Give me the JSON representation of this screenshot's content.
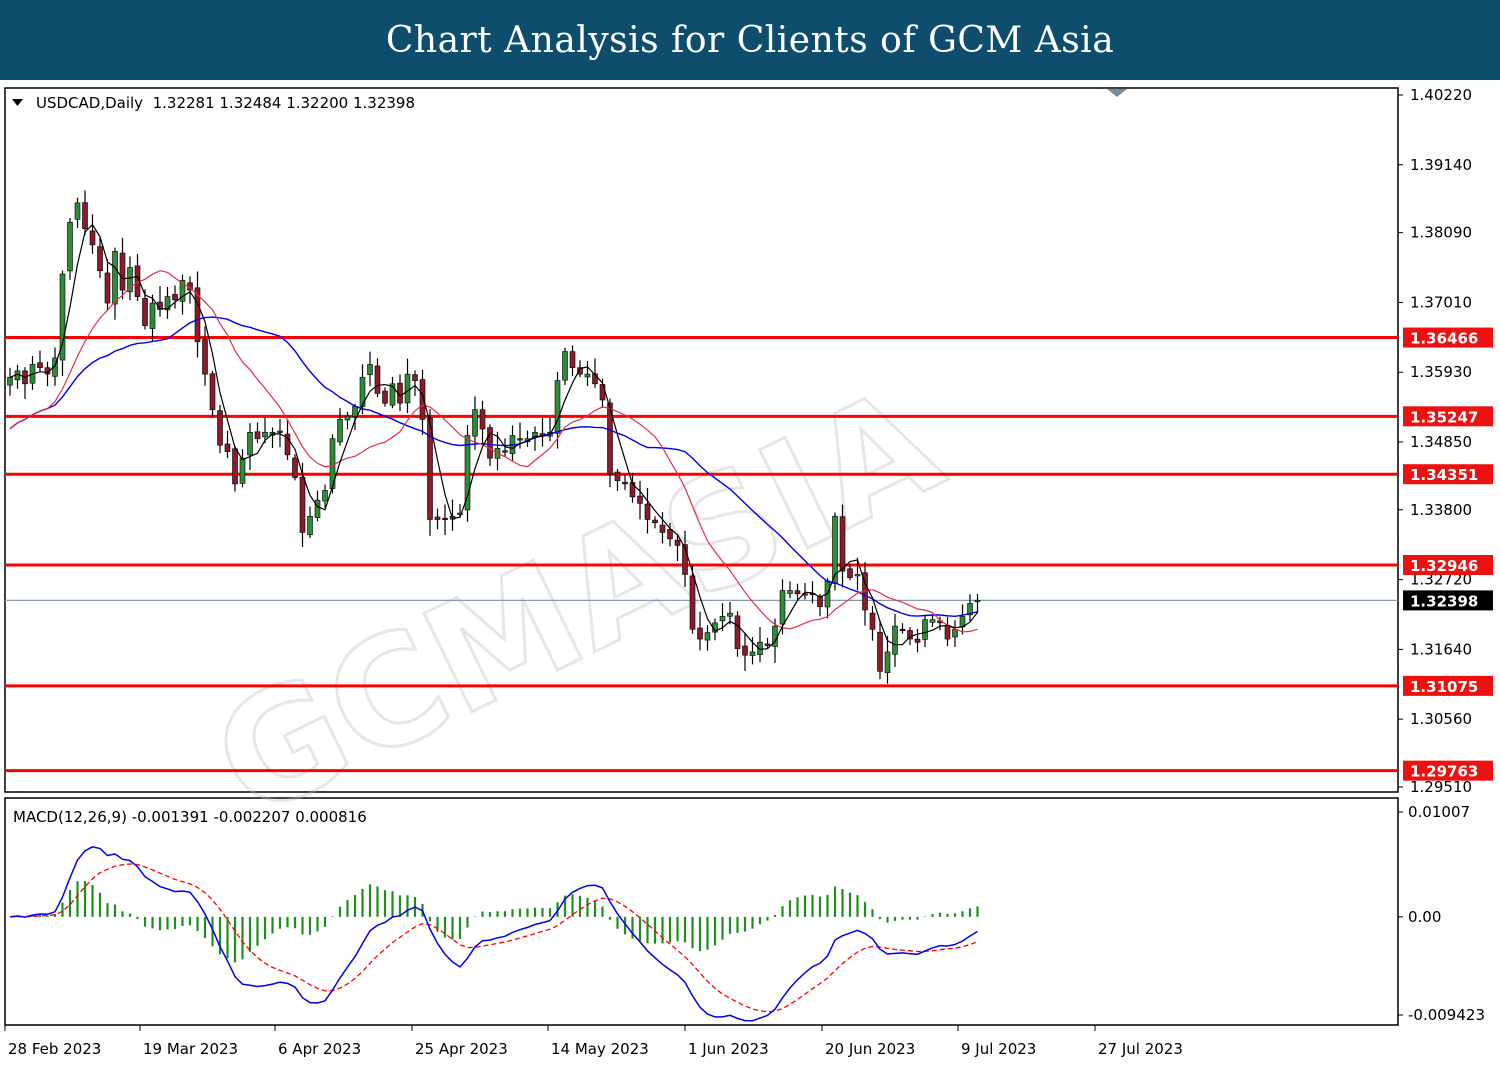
{
  "banner": {
    "title": "Chart Analysis for Clients of GCM Asia"
  },
  "chart_data": {
    "type": "candlestick",
    "symbol_line": "USDCAD,Daily  1.32281 1.32484 1.32200 1.32398",
    "ohlc_last": {
      "open": 1.32281,
      "high": 1.32484,
      "low": 1.322,
      "close": 1.32398
    },
    "price_axis": {
      "ylim": [
        1.2951,
        1.4022
      ],
      "ticks": [
        "1.40220",
        "1.39140",
        "1.38090",
        "1.37010",
        "1.35930",
        "1.34850",
        "1.33800",
        "1.32720",
        "1.31640",
        "1.30560",
        "1.29510"
      ]
    },
    "levels": [
      {
        "label": "1.36466",
        "value": 1.36466
      },
      {
        "label": "1.35247",
        "value": 1.35247
      },
      {
        "label": "1.34351",
        "value": 1.34351
      },
      {
        "label": "1.32946",
        "value": 1.32946
      },
      {
        "label": "1.31075",
        "value": 1.31075
      },
      {
        "label": "1.29763",
        "value": 1.29763
      }
    ],
    "current_price": {
      "label": "1.32398",
      "value": 1.32398
    },
    "x_labels": [
      "28 Feb 2023",
      "19 Mar 2023",
      "6 Apr 2023",
      "25 Apr 2023",
      "14 May 2023",
      "1 Jun 2023",
      "20 Jun 2023",
      "9 Jul 2023",
      "27 Jul 2023"
    ],
    "closes": [
      1.3585,
      1.3595,
      1.3575,
      1.3605,
      1.36,
      1.359,
      1.3615,
      1.3745,
      1.3825,
      1.3855,
      1.3815,
      1.379,
      1.375,
      1.37,
      1.378,
      1.372,
      1.3755,
      1.371,
      1.3665,
      1.37,
      1.369,
      1.371,
      1.3705,
      1.3735,
      1.372,
      1.364,
      1.359,
      1.3535,
      1.348,
      1.347,
      1.342,
      1.346,
      1.35,
      1.349,
      1.35,
      1.35,
      1.35,
      1.3465,
      1.343,
      1.3345,
      1.337,
      1.3395,
      1.341,
      1.349,
      1.352,
      1.3525,
      1.354,
      1.3585,
      1.3605,
      1.356,
      1.3545,
      1.3575,
      1.3545,
      1.359,
      1.358,
      1.352,
      1.3365,
      1.3365,
      1.3365,
      1.337,
      1.3375,
      1.3495,
      1.3535,
      1.3505,
      1.346,
      1.3475,
      1.347,
      1.3495,
      1.349,
      1.349,
      1.35,
      1.3495,
      1.35,
      1.358,
      1.3625,
      1.36,
      1.359,
      1.359,
      1.3575,
      1.355,
      1.3435,
      1.3425,
      1.342,
      1.34,
      1.339,
      1.3365,
      1.336,
      1.3345,
      1.3335,
      1.3325,
      1.328,
      1.3195,
      1.318,
      1.319,
      1.3205,
      1.3215,
      1.322,
      1.3165,
      1.3155,
      1.316,
      1.3175,
      1.317,
      1.32,
      1.3255,
      1.3255,
      1.325,
      1.325,
      1.325,
      1.323,
      1.327,
      1.337,
      1.3285,
      1.3275,
      1.328,
      1.3225,
      1.3195,
      1.313,
      1.316,
      1.32,
      1.3195,
      1.318,
      1.3175,
      1.321,
      1.321,
      1.3205,
      1.318,
      1.3195,
      1.3215,
      1.3235,
      1.324
    ],
    "macd": {
      "label": "MACD(12,26,9) -0.001391 -0.002207 0.000816",
      "main": -0.001391,
      "signal": -0.002207,
      "hist": 0.000816,
      "ticks": [
        "0.01007",
        "0.00",
        "-0.009423"
      ],
      "ylim": [
        -0.009423,
        0.01007
      ]
    }
  }
}
